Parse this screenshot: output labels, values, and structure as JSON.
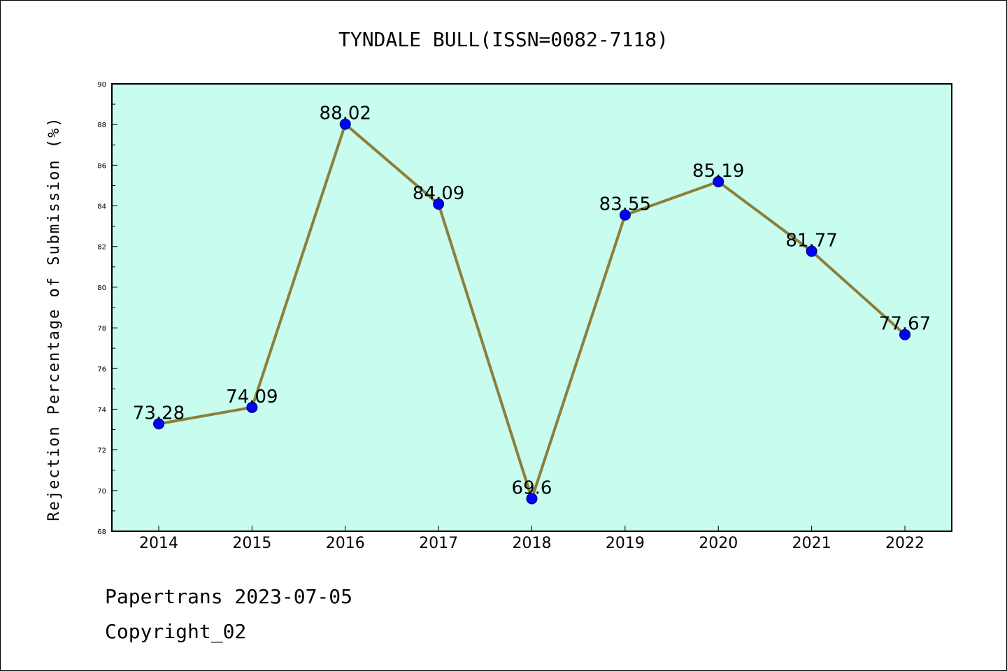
{
  "chart_data": {
    "type": "line",
    "title": "TYNDALE BULL(ISSN=0082-7118)",
    "xlabel": "",
    "ylabel": "Rejection Percentage of Submission (%)",
    "x": [
      "2014",
      "2015",
      "2016",
      "2017",
      "2018",
      "2019",
      "2020",
      "2021",
      "2022"
    ],
    "series": [
      {
        "values": [
          73.28,
          74.09,
          88.02,
          84.09,
          69.6,
          83.55,
          85.19,
          81.77,
          77.67
        ],
        "labels": [
          "73.28",
          "74.09",
          "88.02",
          "84.09",
          "69.6",
          "83.55",
          "85.19",
          "81.77",
          "77.67"
        ],
        "line_color": "#8c7f3a",
        "marker_color": "#0000ff"
      }
    ],
    "ylim": [
      68,
      90
    ],
    "yticks": [
      "68",
      "70",
      "72",
      "74",
      "76",
      "78",
      "80",
      "82",
      "84",
      "86",
      "88",
      "90"
    ],
    "plot_background": "#c7fcee",
    "grid": false,
    "legend": "none"
  },
  "footer": {
    "line1": "Papertrans 2023-07-05",
    "line2": "Copyright_02"
  }
}
